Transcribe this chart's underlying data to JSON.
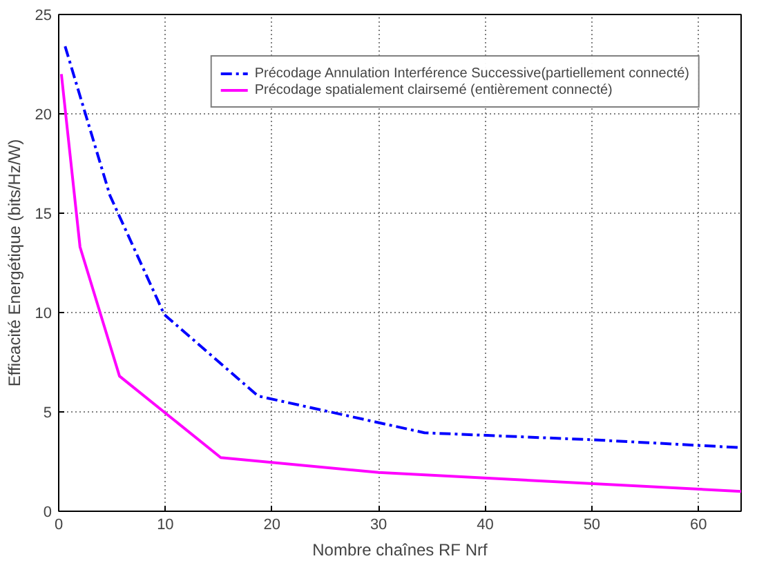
{
  "chart_data": {
    "type": "line",
    "xlabel": "Nombre chaînes RF Nrf",
    "ylabel": "Efficacité Energétique (bits/Hz/W)",
    "xlim": [
      0,
      64
    ],
    "ylim": [
      0,
      25
    ],
    "xticks": [
      0,
      10,
      20,
      30,
      40,
      50,
      60
    ],
    "yticks": [
      0,
      5,
      10,
      15,
      20,
      25
    ],
    "grid": true,
    "legend": "top right",
    "marker": "none",
    "series": [
      {
        "name": "Précodage Annulation Interférence Successive(partiellement connecté)",
        "color": "#0000ff",
        "line_style": "dashed",
        "x": [
          0.6,
          4.8,
          9.9,
          18.7,
          34.3,
          50,
          64
        ],
        "values": [
          23.4,
          15.9,
          9.9,
          5.8,
          3.95,
          3.6,
          3.2
        ]
      },
      {
        "name": "Précodage spatialement clairsemé (entièrement connecté)",
        "color": "#ff00ff",
        "line_style": "solid",
        "x": [
          0.25,
          2.0,
          5.7,
          15.2,
          30,
          64
        ],
        "values": [
          22.0,
          13.3,
          6.8,
          2.7,
          1.95,
          1.0
        ]
      }
    ]
  }
}
